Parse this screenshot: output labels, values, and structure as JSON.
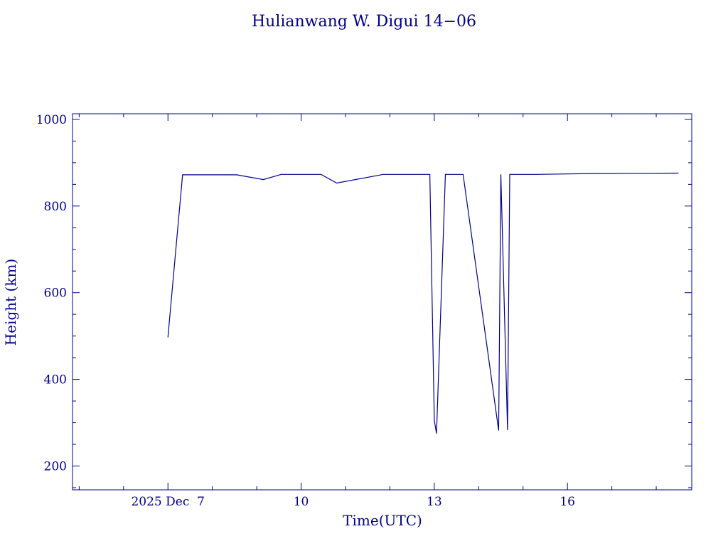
{
  "chart_data": {
    "type": "line",
    "title": "Hulianwang W. Digui 14−06",
    "xlabel": "Time(UTC)",
    "ylabel": "Height (km)",
    "x_unit": "day of December 2025",
    "xlim": [
      4.85,
      18.8
    ],
    "ylim": [
      145,
      1013
    ],
    "x_ticks": [
      {
        "value": 7,
        "label": "2025 Dec  7"
      },
      {
        "value": 10,
        "label": "10"
      },
      {
        "value": 13,
        "label": "13"
      },
      {
        "value": 16,
        "label": "16"
      }
    ],
    "y_ticks": [
      200,
      400,
      600,
      800,
      1000
    ],
    "grid": false,
    "color": "#00008b",
    "series": [
      {
        "x": [
          7.0,
          7.33,
          8.55,
          9.15,
          9.55,
          10.45,
          10.8,
          11.85,
          12.9,
          13.0,
          13.05,
          13.25,
          13.55,
          13.65,
          14.45,
          14.5,
          14.65,
          14.7,
          14.95,
          15.1,
          15.25,
          15.3,
          16.55,
          18.5
        ],
        "y": [
          497,
          872,
          872,
          861,
          873,
          873,
          853,
          873,
          873,
          305,
          275,
          873,
          873,
          873,
          282,
          873,
          283,
          873,
          873,
          873,
          873,
          873,
          875,
          876
        ]
      }
    ]
  }
}
